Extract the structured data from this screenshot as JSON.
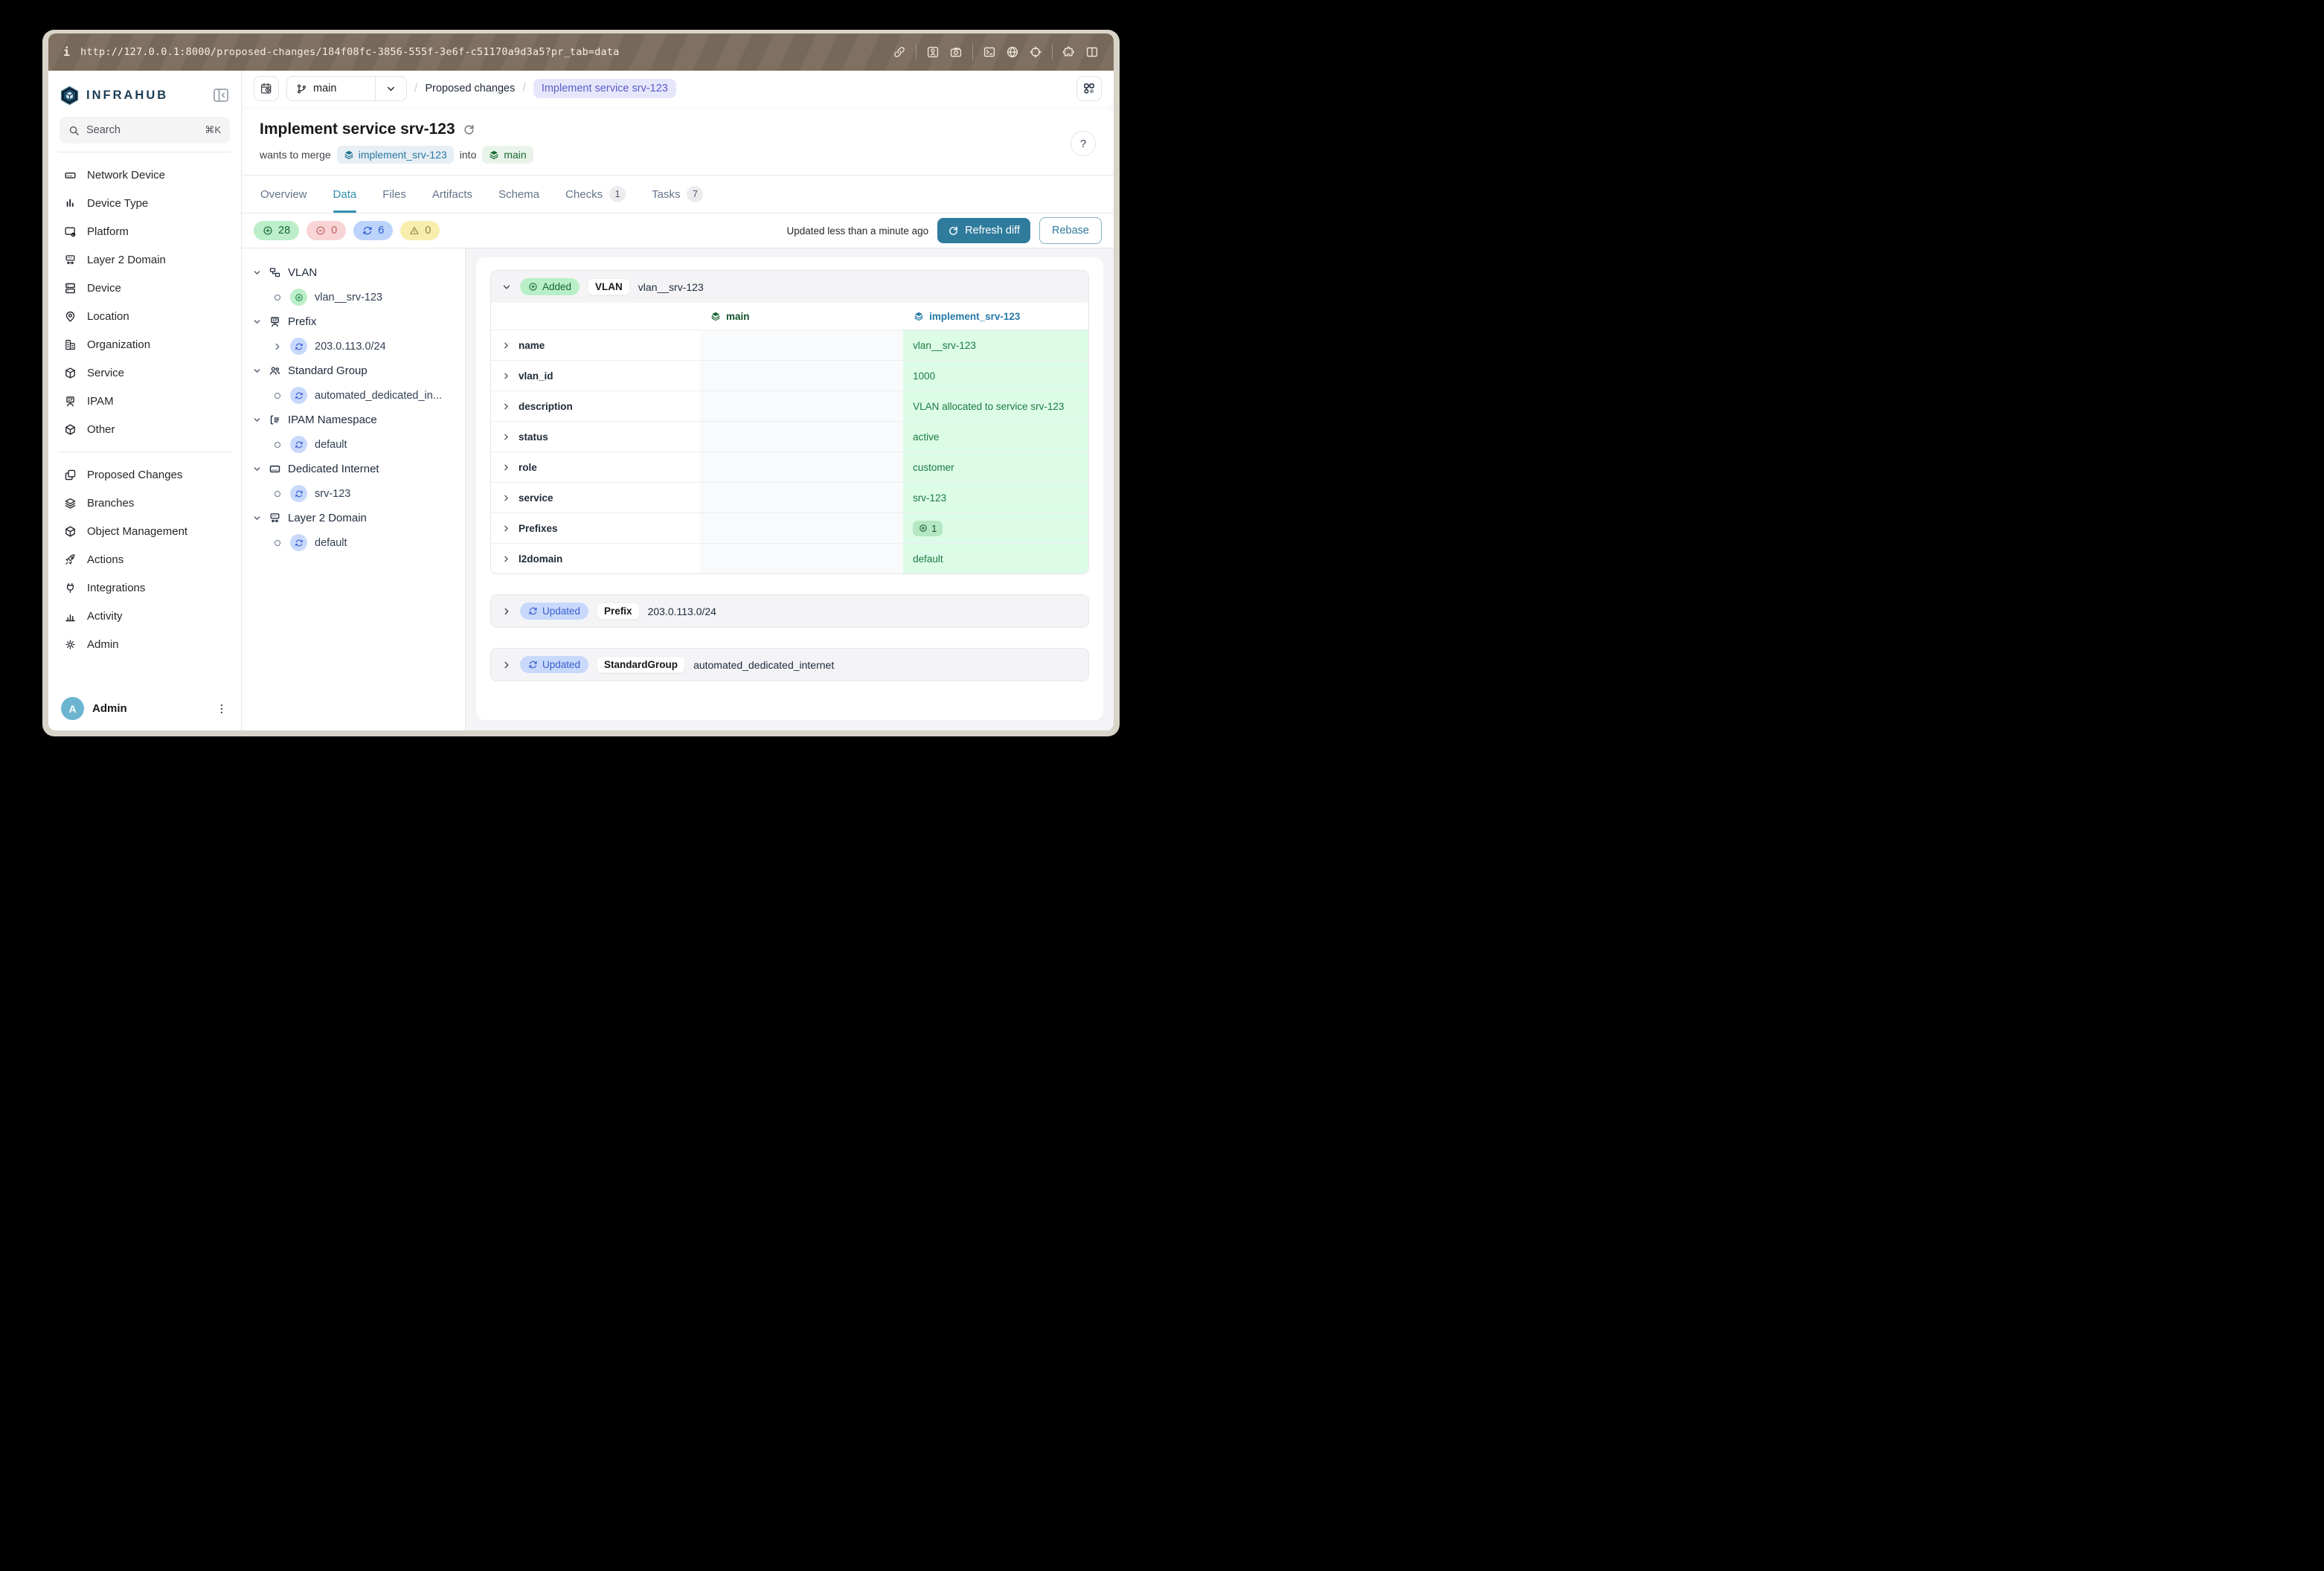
{
  "colors": {
    "accent_teal": "#2e7b9c",
    "tab_active": "#3090b0",
    "added_green": "#166534",
    "updated_blue": "#3a5ed1",
    "diff_cell_green": "#dcfce7",
    "toolbar_brown": "#7b6c5c",
    "frame_beige": "#d9d4c9",
    "indigo_pill": "#5a5cc8"
  },
  "browser": {
    "info_glyph": "i",
    "url": "http://127.0.0.1:8000/proposed-changes/184f08fc-3856-555f-3e6f-c51170a9d3a5?pr_tab=data",
    "toolbar_icons": [
      "link",
      "sep",
      "image",
      "camera",
      "sep",
      "terminal",
      "globe",
      "crosshair",
      "sep",
      "puzzle",
      "columns"
    ]
  },
  "sidebar": {
    "brand": "INFRAHUB",
    "search": {
      "placeholder": "Search",
      "shortcut": "⌘K"
    },
    "nav_primary": [
      {
        "label": "Network Device",
        "icon": "network-device"
      },
      {
        "label": "Device Type",
        "icon": "device-type"
      },
      {
        "label": "Platform",
        "icon": "platform"
      },
      {
        "label": "Layer 2 Domain",
        "icon": "layer2"
      },
      {
        "label": "Device",
        "icon": "device"
      },
      {
        "label": "Location",
        "icon": "location"
      },
      {
        "label": "Organization",
        "icon": "organization"
      },
      {
        "label": "Service",
        "icon": "service"
      },
      {
        "label": "IPAM",
        "icon": "ipam"
      },
      {
        "label": "Other",
        "icon": "cube"
      }
    ],
    "nav_secondary": [
      {
        "label": "Proposed Changes",
        "icon": "proposed-changes"
      },
      {
        "label": "Branches",
        "icon": "branches"
      },
      {
        "label": "Object Management",
        "icon": "cube"
      },
      {
        "label": "Actions",
        "icon": "rocket"
      },
      {
        "label": "Integrations",
        "icon": "plug"
      },
      {
        "label": "Activity",
        "icon": "activity"
      },
      {
        "label": "Admin",
        "icon": "gear"
      }
    ],
    "user": {
      "initial": "A",
      "name": "Admin"
    }
  },
  "breadcrumb": {
    "branch": "main",
    "parent": "Proposed changes",
    "current": "Implement service srv-123",
    "slash": "/"
  },
  "header": {
    "title": "Implement service srv-123",
    "merge_prefix": "wants to merge",
    "source_branch": "implement_srv-123",
    "into_label": "into",
    "target_branch": "main",
    "help_label": "?"
  },
  "tabs": [
    {
      "label": "Overview",
      "active": false
    },
    {
      "label": "Data",
      "active": true
    },
    {
      "label": "Files",
      "active": false
    },
    {
      "label": "Artifacts",
      "active": false
    },
    {
      "label": "Schema",
      "active": false
    },
    {
      "label": "Checks",
      "count": "1",
      "active": false
    },
    {
      "label": "Tasks",
      "count": "7",
      "active": false
    }
  ],
  "stats": {
    "added": "28",
    "removed": "0",
    "updated": "6",
    "conflicts": "0"
  },
  "diffbar": {
    "updated_text": "Updated less than a minute ago",
    "refresh_label": "Refresh diff",
    "rebase_label": "Rebase"
  },
  "tree": [
    {
      "label": "VLAN",
      "icon": "vlan",
      "children": [
        {
          "label": "vlan__srv-123",
          "change": "added",
          "lead": "dot"
        }
      ]
    },
    {
      "label": "Prefix",
      "icon": "ipam",
      "children": [
        {
          "label": "203.0.113.0/24",
          "change": "updated",
          "lead": "chevron"
        }
      ]
    },
    {
      "label": "Standard Group",
      "icon": "group",
      "children": [
        {
          "label": "automated_dedicated_in...",
          "change": "updated",
          "lead": "dot"
        }
      ]
    },
    {
      "label": "IPAM Namespace",
      "icon": "namespace",
      "children": [
        {
          "label": "default",
          "change": "updated",
          "lead": "dot"
        }
      ]
    },
    {
      "label": "Dedicated Internet",
      "icon": "dedicated",
      "children": [
        {
          "label": "srv-123",
          "change": "updated",
          "lead": "dot"
        }
      ]
    },
    {
      "label": "Layer 2 Domain",
      "icon": "layer2",
      "children": [
        {
          "label": "default",
          "change": "updated",
          "lead": "dot"
        }
      ]
    }
  ],
  "diff_cards": [
    {
      "state": "Added",
      "kind": "VLAN",
      "name": "vlan__srv-123",
      "expanded": true,
      "columns": {
        "base": "main",
        "branch": "implement_srv-123"
      },
      "rows": [
        {
          "property": "name",
          "branch_value": "vlan__srv-123"
        },
        {
          "property": "vlan_id",
          "branch_value": "1000"
        },
        {
          "property": "description",
          "branch_value": "VLAN allocated to service srv-123"
        },
        {
          "property": "status",
          "branch_value": "active"
        },
        {
          "property": "role",
          "branch_value": "customer"
        },
        {
          "property": "service",
          "branch_value": "srv-123"
        },
        {
          "property": "Prefixes",
          "branch_value": "1",
          "badge": true
        },
        {
          "property": "l2domain",
          "branch_value": "default"
        }
      ]
    },
    {
      "state": "Updated",
      "kind": "Prefix",
      "name": "203.0.113.0/24",
      "expanded": false
    },
    {
      "state": "Updated",
      "kind": "StandardGroup",
      "name": "automated_dedicated_internet",
      "expanded": false
    }
  ]
}
